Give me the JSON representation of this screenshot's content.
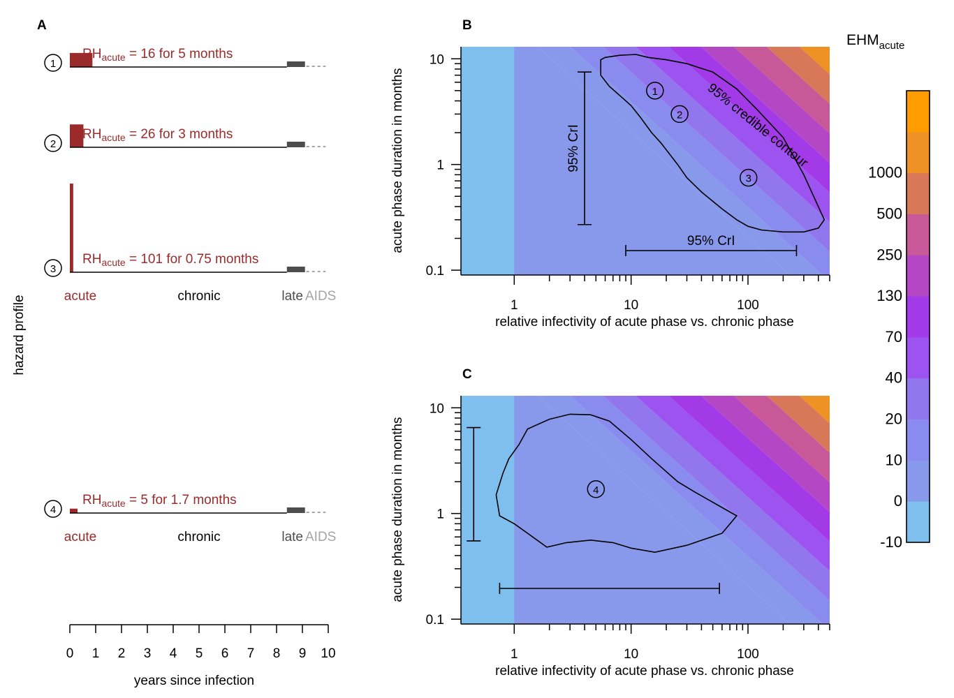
{
  "chart_data": [
    {
      "panel": "A",
      "type": "hazard-profile",
      "ylabel": "hazard profile",
      "xlabel": "years since infection",
      "xlim": [
        0,
        10
      ],
      "xticks": [
        "0",
        "1",
        "2",
        "3",
        "4",
        "5",
        "6",
        "7",
        "8",
        "9",
        "10"
      ],
      "late_phase_years": [
        8.4,
        9.1
      ],
      "aids_years": [
        9.1,
        10
      ],
      "phase_labels": {
        "acute": "acute",
        "chronic": "chronic",
        "late": "late",
        "aids": "AIDS"
      },
      "profiles": [
        {
          "marker": "①",
          "rh_label": "RH",
          "rh_sub": "acute",
          "rh_rest": " = 16 for 5 months",
          "rh": 16,
          "months": 5
        },
        {
          "marker": "②",
          "rh_label": "RH",
          "rh_sub": "acute",
          "rh_rest": " = 26 for 3 months",
          "rh": 26,
          "months": 3
        },
        {
          "marker": "③",
          "rh_label": "RH",
          "rh_sub": "acute",
          "rh_rest": " = 101 for 0.75 months",
          "rh": 101,
          "months": 0.75
        },
        {
          "marker": "④",
          "rh_label": "RH",
          "rh_sub": "acute",
          "rh_rest": " = 5 for 1.7 months",
          "rh": 5,
          "months": 1.7
        }
      ]
    },
    {
      "panel": "B",
      "type": "heatmap",
      "xlabel": "relative infectivity of acute phase vs. chronic phase",
      "ylabel": "acute phase duration in months",
      "xscale": "log",
      "yscale": "log",
      "xlim": [
        0.35,
        500
      ],
      "ylim": [
        0.09,
        13
      ],
      "xticks": [
        "1",
        "10",
        "100"
      ],
      "yticks": [
        "0.1",
        "1",
        "10"
      ],
      "contour_label": "95% credible contour",
      "crl_x_label": "95% CrI",
      "crl_y_label": "95% CrI",
      "crl_x": [
        9,
        260
      ],
      "crl_y": [
        0.27,
        7.5
      ],
      "crl_y_at_x": 4,
      "crl_x_at_y": 0.2,
      "contour": [
        [
          5.5,
          9.8
        ],
        [
          6,
          10.3
        ],
        [
          8,
          10.8
        ],
        [
          11,
          11
        ],
        [
          14,
          10.3
        ],
        [
          20,
          9.8
        ],
        [
          30,
          9
        ],
        [
          50,
          7.5
        ],
        [
          80,
          5.2
        ],
        [
          120,
          3.3
        ],
        [
          200,
          1.8
        ],
        [
          300,
          0.8
        ],
        [
          450,
          0.3
        ],
        [
          400,
          0.25
        ],
        [
          300,
          0.23
        ],
        [
          200,
          0.23
        ],
        [
          130,
          0.24
        ],
        [
          100,
          0.26
        ],
        [
          80,
          0.3
        ],
        [
          60,
          0.38
        ],
        [
          40,
          0.55
        ],
        [
          30,
          0.75
        ],
        [
          25,
          1
        ],
        [
          18,
          1.6
        ],
        [
          15,
          2
        ],
        [
          12,
          2.8
        ],
        [
          10,
          3.6
        ],
        [
          8,
          4.5
        ],
        [
          6.5,
          5.5
        ],
        [
          5.5,
          7
        ]
      ],
      "points": [
        {
          "marker": "①",
          "x": 16,
          "y": 5
        },
        {
          "marker": "②",
          "x": 26,
          "y": 3
        },
        {
          "marker": "③",
          "x": 101,
          "y": 0.75
        }
      ]
    },
    {
      "panel": "C",
      "type": "heatmap",
      "xlabel": "relative infectivity of acute phase vs. chronic phase",
      "ylabel": "acute phase duration in months",
      "xscale": "log",
      "yscale": "log",
      "xlim": [
        0.35,
        500
      ],
      "ylim": [
        0.09,
        13
      ],
      "xticks": [
        "1",
        "10",
        "100"
      ],
      "yticks": [
        "0.1",
        "1",
        "10"
      ],
      "crl_x": [
        0.75,
        57
      ],
      "crl_y": [
        0.55,
        6.5
      ],
      "crl_y_at_x": 0.45,
      "crl_x_at_y": 0.2,
      "contour": [
        [
          0.75,
          0.95
        ],
        [
          1,
          0.8
        ],
        [
          1.3,
          0.65
        ],
        [
          1.9,
          0.48
        ],
        [
          2.8,
          0.53
        ],
        [
          4.5,
          0.56
        ],
        [
          7,
          0.53
        ],
        [
          10,
          0.47
        ],
        [
          16,
          0.43
        ],
        [
          30,
          0.5
        ],
        [
          60,
          0.65
        ],
        [
          80,
          0.95
        ],
        [
          35,
          1.6
        ],
        [
          25,
          2
        ],
        [
          15,
          3.3
        ],
        [
          10,
          5
        ],
        [
          6.5,
          7.5
        ],
        [
          4.5,
          8.6
        ],
        [
          3,
          8.7
        ],
        [
          2,
          7.8
        ],
        [
          1.3,
          6.3
        ],
        [
          1.1,
          4.5
        ],
        [
          0.9,
          3.3
        ],
        [
          0.8,
          2.4
        ],
        [
          0.7,
          1.5
        ]
      ],
      "points": [
        {
          "marker": "④",
          "x": 5,
          "y": 1.7
        }
      ]
    }
  ],
  "colorbar": {
    "title": "EHM",
    "title_sub": "acute",
    "ticks": [
      "-10",
      "0",
      "10",
      "20",
      "40",
      "70",
      "130",
      "250",
      "500",
      "1000"
    ],
    "colors": [
      "#7fbfee",
      "#8899ec",
      "#8a8bef",
      "#9276ee",
      "#9c53ef",
      "#a33ae8",
      "#b448c4",
      "#c95898",
      "#d87858",
      "#ee9226",
      "#ff9d00",
      "#ff6a08"
    ]
  },
  "panel_labels": [
    "A",
    "B",
    "C"
  ],
  "colors": {
    "acute": "#9b2b2b",
    "late": "#4d4d4d",
    "aids": "#a5a5a5"
  }
}
